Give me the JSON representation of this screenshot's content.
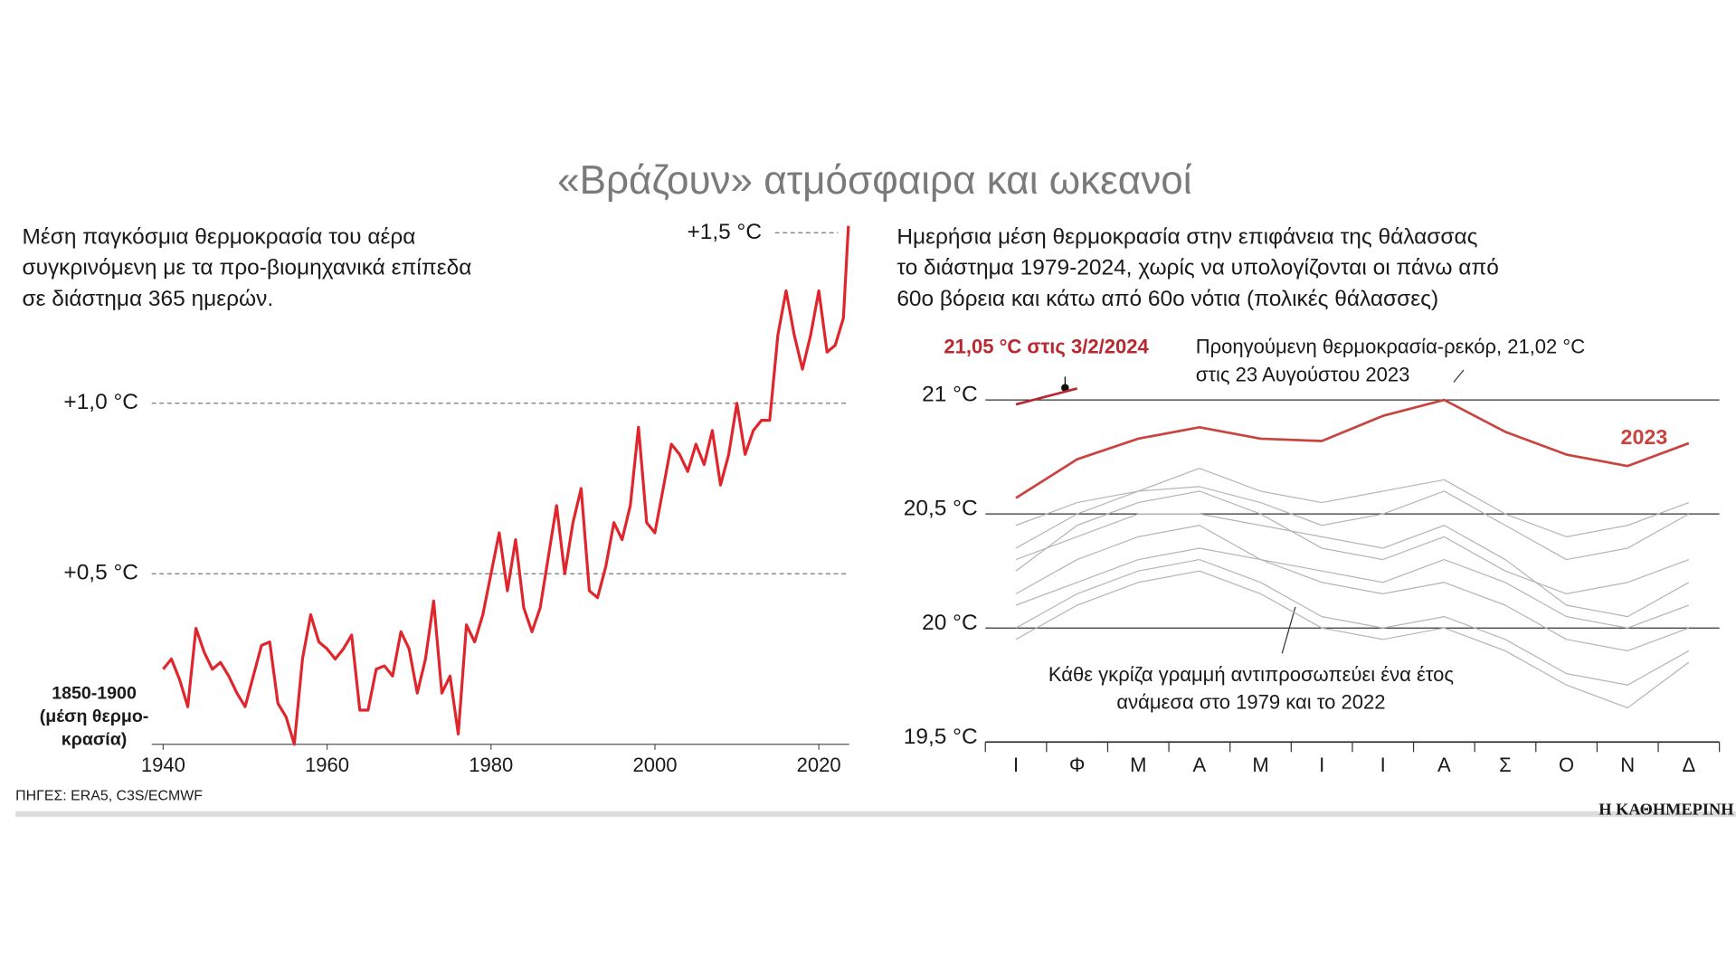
{
  "title": "«Βράζουν» ατμόσφαιρα και ωκεανοί",
  "source": "ΠΗΓΕΣ: ERA5, C3S/ECMWF",
  "logo": "Η ΚΑΘΗΜΕΡΙΝΗ",
  "chart_data": [
    {
      "type": "line",
      "subtitle": "Μέση παγκόσμια θερμοκρασία του αέρα\nσυγκρινόμενη με τα προ-βιομηχανικά επίπεδα\nσε διάστημα 365 ημερών.",
      "x": [
        1940,
        1941,
        1942,
        1943,
        1944,
        1945,
        1946,
        1947,
        1948,
        1949,
        1950,
        1951,
        1952,
        1953,
        1954,
        1955,
        1956,
        1957,
        1958,
        1959,
        1960,
        1961,
        1962,
        1963,
        1964,
        1965,
        1966,
        1967,
        1968,
        1969,
        1970,
        1971,
        1972,
        1973,
        1974,
        1975,
        1976,
        1977,
        1978,
        1979,
        1980,
        1981,
        1982,
        1983,
        1984,
        1985,
        1986,
        1987,
        1988,
        1989,
        1990,
        1991,
        1992,
        1993,
        1994,
        1995,
        1996,
        1997,
        1998,
        1999,
        2000,
        2001,
        2002,
        2003,
        2004,
        2005,
        2006,
        2007,
        2008,
        2009,
        2010,
        2011,
        2012,
        2013,
        2014,
        2015,
        2016,
        2017,
        2018,
        2019,
        2020,
        2021,
        2022,
        2023,
        2023.6
      ],
      "series": [
        {
          "color": "#e0262d",
          "values": [
            0.22,
            0.25,
            0.19,
            0.11,
            0.34,
            0.27,
            0.22,
            0.24,
            0.2,
            0.15,
            0.11,
            0.2,
            0.29,
            0.3,
            0.12,
            0.08,
            0.0,
            0.25,
            0.38,
            0.3,
            0.28,
            0.25,
            0.28,
            0.32,
            0.1,
            0.1,
            0.22,
            0.23,
            0.2,
            0.33,
            0.28,
            0.15,
            0.25,
            0.42,
            0.15,
            0.2,
            0.03,
            0.35,
            0.3,
            0.38,
            0.5,
            0.62,
            0.45,
            0.6,
            0.4,
            0.33,
            0.4,
            0.55,
            0.7,
            0.5,
            0.65,
            0.75,
            0.45,
            0.43,
            0.52,
            0.65,
            0.6,
            0.7,
            0.93,
            0.65,
            0.62,
            0.75,
            0.88,
            0.85,
            0.8,
            0.88,
            0.82,
            0.92,
            0.76,
            0.85,
            1.0,
            0.85,
            0.92,
            0.95,
            0.95,
            1.2,
            1.33,
            1.2,
            1.1,
            1.2,
            1.33,
            1.15,
            1.17,
            1.25,
            1.52
          ]
        }
      ],
      "xlim": [
        1938.6,
        2023.7
      ],
      "xticks": [
        1940,
        1960,
        1980,
        2000,
        2020
      ],
      "ylim": [
        0,
        1.5
      ],
      "yticks": [
        {
          "value": 0,
          "label": "1850-1900\n(μέση θερμο-\nκρασία)"
        },
        {
          "value": 0.5,
          "label": "+0,5 °C"
        },
        {
          "value": 1.0,
          "label": "+1,0 °C"
        },
        {
          "value": 1.5,
          "label": "+1,5 °C"
        }
      ],
      "grid": true
    },
    {
      "type": "line",
      "subtitle": "Ημερήσια μέση θερμοκρασία στην επιφάνεια της θάλασσας\nτο διάστημα 1979-2024, χωρίς να υπολογίζονται οι πάνω από\n60ο βόρεια και κάτω από 60ο νότια (πολικές θάλασσες)",
      "categories": [
        "Ι",
        "Φ",
        "Μ",
        "Α",
        "Μ",
        "Ι",
        "Ι",
        "Α",
        "Σ",
        "Ο",
        "Ν",
        "Δ"
      ],
      "series": [
        {
          "color": "#b5b5b5",
          "values": [
            20.45,
            20.55,
            20.6,
            20.62,
            20.55,
            20.45,
            20.5,
            20.6,
            20.45,
            20.3,
            20.35,
            20.5
          ]
        },
        {
          "color": "#b5b5b5",
          "values": [
            20.3,
            20.4,
            20.5,
            20.5,
            20.45,
            20.4,
            20.35,
            20.45,
            20.3,
            20.1,
            20.05,
            20.2
          ]
        },
        {
          "color": "#b5b5b5",
          "values": [
            20.15,
            20.3,
            20.4,
            20.45,
            20.3,
            20.2,
            20.15,
            20.2,
            20.1,
            19.95,
            19.9,
            20.0
          ]
        },
        {
          "color": "#b5b5b5",
          "values": [
            20.0,
            20.15,
            20.25,
            20.3,
            20.2,
            20.05,
            20.0,
            20.05,
            19.95,
            19.8,
            19.75,
            19.9
          ]
        },
        {
          "color": "#b5b5b5",
          "values": [
            20.25,
            20.45,
            20.55,
            20.6,
            20.5,
            20.35,
            20.3,
            20.4,
            20.25,
            20.15,
            20.2,
            20.3
          ]
        },
        {
          "color": "#b5b5b5",
          "values": [
            20.1,
            20.2,
            20.3,
            20.35,
            20.3,
            20.25,
            20.2,
            20.3,
            20.2,
            20.05,
            20.0,
            20.1
          ]
        },
        {
          "color": "#b5b5b5",
          "values": [
            20.35,
            20.5,
            20.6,
            20.7,
            20.6,
            20.55,
            20.6,
            20.65,
            20.5,
            20.4,
            20.45,
            20.55
          ]
        },
        {
          "color": "#b5b5b5",
          "values": [
            19.95,
            20.1,
            20.2,
            20.25,
            20.15,
            20.0,
            19.95,
            20.0,
            19.9,
            19.75,
            19.65,
            19.85
          ]
        },
        {
          "name": "2023",
          "color": "#c8443f",
          "values": [
            20.57,
            20.74,
            20.83,
            20.88,
            20.83,
            20.82,
            20.93,
            21.0,
            20.86,
            20.76,
            20.71,
            20.81
          ]
        },
        {
          "color": "#b8282f",
          "values": [
            20.98,
            21.05,
            null,
            null,
            null,
            null,
            null,
            null,
            null,
            null,
            null,
            null
          ]
        }
      ],
      "ylim": [
        19.5,
        21
      ],
      "yticks": [
        {
          "value": 19.5,
          "label": "19,5 °C"
        },
        {
          "value": 20,
          "label": "20 °C"
        },
        {
          "value": 20.5,
          "label": "20,5 °C"
        },
        {
          "value": 21,
          "label": "21 °C"
        }
      ],
      "grid": true,
      "annotations": [
        "21,05 °C στις 3/2/2024",
        "Προηγούμενη θερμοκρασία-ρεκόρ, 21,02 °C\nστις 23 Αυγούστου 2023",
        "Κάθε γκρίζα γραμμή αντιπροσωπεύει ένα έτος\nανάμεσα στο 1979 και το 2022"
      ]
    }
  ]
}
